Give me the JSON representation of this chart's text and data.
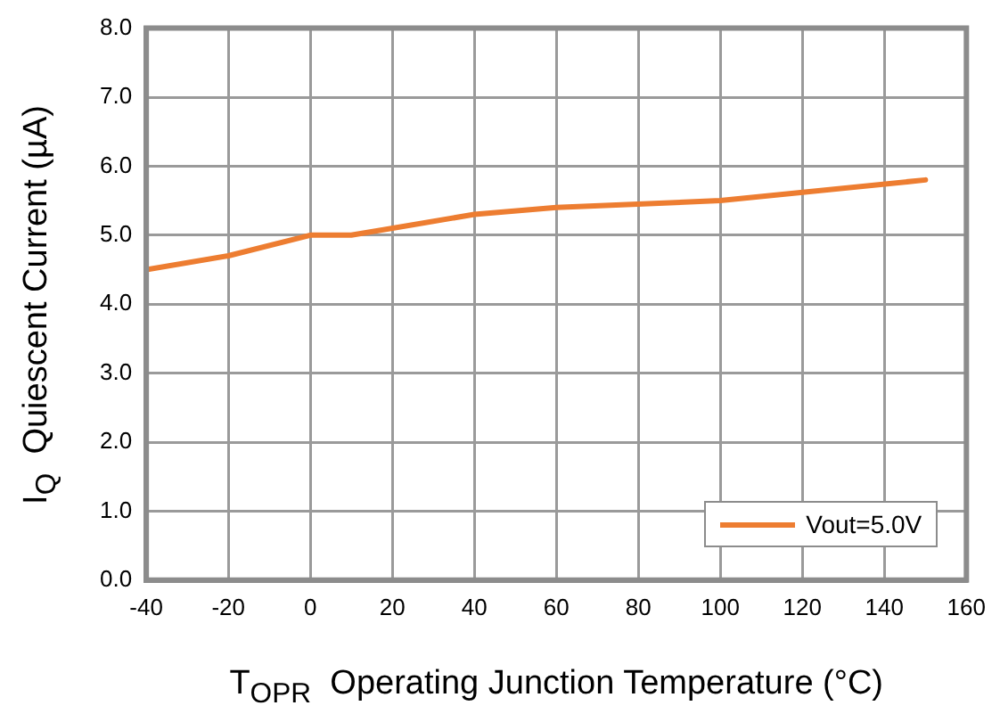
{
  "chart_data": {
    "type": "line",
    "xlabel": "T$_{OPR}$  Operating Junction Temperature (°C)",
    "ylabel": "I$_{Q}$  Quiescent Current (µA)",
    "x": [
      -40,
      -20,
      0,
      10,
      40,
      60,
      100,
      150
    ],
    "series": [
      {
        "name": "Vout=5.0V",
        "color": "#ed7d31",
        "values": [
          4.5,
          4.7,
          5.0,
          5.0,
          5.3,
          5.4,
          5.5,
          5.8
        ]
      }
    ],
    "xlim": [
      -40,
      160
    ],
    "xticks": [
      -40,
      -20,
      0,
      20,
      40,
      60,
      80,
      100,
      120,
      140,
      160
    ],
    "ylim": [
      0,
      8
    ],
    "yticks": [
      {
        "value": 0,
        "label": "0.0"
      },
      {
        "value": 1,
        "label": "1.0"
      },
      {
        "value": 2,
        "label": "2.0"
      },
      {
        "value": 3,
        "label": "3.0"
      },
      {
        "value": 4,
        "label": "4.0"
      },
      {
        "value": 5,
        "label": "5.0"
      },
      {
        "value": 6,
        "label": "6.0"
      },
      {
        "value": 7,
        "label": "7.0"
      },
      {
        "value": 8,
        "label": "8.0"
      }
    ],
    "grid": true,
    "legend": "bottom right",
    "marker": "none",
    "line_style": "solid"
  }
}
